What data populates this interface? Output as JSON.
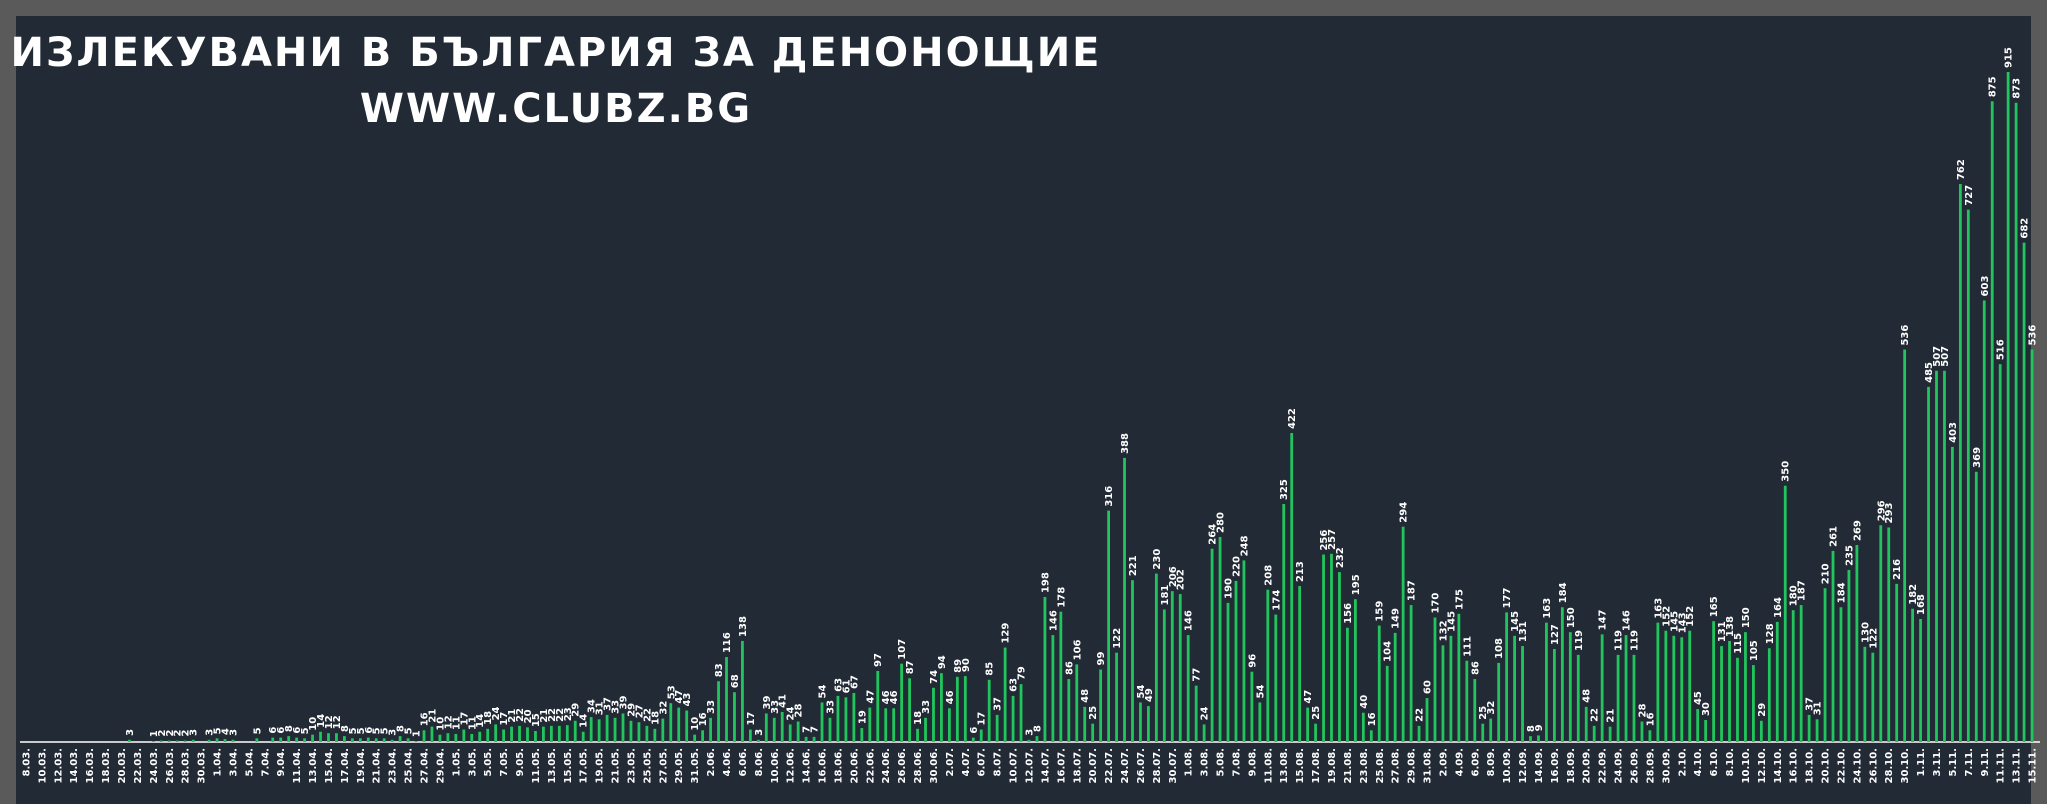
{
  "chart_data": {
    "type": "bar",
    "title": "ИЗЛЕКУВАНИ В БЪЛГАРИЯ ЗА ДЕНОНОЩИЕ",
    "subtitle": "WWW.CLUBZ.BG",
    "color": "#21c55d",
    "categories": [
      "8.03.",
      null,
      "10.03.",
      null,
      "12.03.",
      null,
      "14.03.",
      null,
      "16.03.",
      null,
      "18.03.",
      null,
      "20.03.",
      null,
      "22.03.",
      null,
      "24.03.",
      null,
      "26.03.",
      null,
      "28.03.",
      null,
      "30.03.",
      null,
      "1.04.",
      null,
      "3.04.",
      null,
      "5.04.",
      null,
      "7.04.",
      null,
      "9.04.",
      null,
      "11.04.",
      null,
      "13.04.",
      null,
      "15.04.",
      null,
      "17.04.",
      null,
      "19.04.",
      null,
      "21.04.",
      null,
      "23.04.",
      null,
      "25.04.",
      null,
      "27.04.",
      null,
      "29.04.",
      null,
      "1.05.",
      null,
      "3.05.",
      null,
      "5.05.",
      null,
      "7.05.",
      null,
      "9.05.",
      null,
      "11.05.",
      null,
      "13.05.",
      null,
      "15.05.",
      null,
      "17.05.",
      null,
      "19.05.",
      null,
      "21.05.",
      null,
      "23.05.",
      null,
      "25.05.",
      null,
      "27.05.",
      null,
      "29.05.",
      null,
      "31.05.",
      null,
      "2.06.",
      null,
      "4.06.",
      null,
      "6.06.",
      null,
      "8.06.",
      null,
      "10.06.",
      null,
      "12.06.",
      null,
      "14.06.",
      null,
      "16.06.",
      null,
      "18.06.",
      null,
      "20.06.",
      null,
      "22.06.",
      null,
      "24.06.",
      null,
      "26.06.",
      null,
      "28.06.",
      null,
      "30.06.",
      null,
      "2.07.",
      null,
      "4.07.",
      null,
      "6.07.",
      null,
      "8.07.",
      null,
      "10.07.",
      null,
      "12.07.",
      null,
      "14.07.",
      null,
      "16.07.",
      null,
      "18.07.",
      null,
      "20.07.",
      null,
      "22.07.",
      null,
      "24.07.",
      null,
      "26.07.",
      null,
      "28.07.",
      null,
      "30.07.",
      null,
      "1.08.",
      null,
      "3.08.",
      null,
      "5.08.",
      null,
      "7.08.",
      null,
      "9.08.",
      null,
      "11.08.",
      null,
      "13.08.",
      null,
      "15.08.",
      null,
      "17.08.",
      null,
      "19.08.",
      null,
      "21.08.",
      null,
      "23.08.",
      null,
      "25.08.",
      null,
      "27.08.",
      null,
      "29.08.",
      null,
      "31.08.",
      null,
      "2.09.",
      null,
      "4.09.",
      null,
      "6.09.",
      null,
      "8.09.",
      null,
      "10.09.",
      null,
      "12.09.",
      null,
      "14.09.",
      null,
      "16.09.",
      null,
      "18.09.",
      null,
      "20.09.",
      null,
      "22.09.",
      null,
      "24.09.",
      null,
      "26.09.",
      null,
      "28.09.",
      null,
      "30.09.",
      null,
      "2.10.",
      null,
      "4.10.",
      null,
      "6.10.",
      null,
      "8.10.",
      null,
      "10.10.",
      null,
      "12.10.",
      null,
      "14.10.",
      null,
      "16.10.",
      null,
      "18.10.",
      null,
      "20.10.",
      null,
      "22.10.",
      null,
      "24.10.",
      null,
      "26.10.",
      null,
      "28.10.",
      null,
      "30.10.",
      null,
      "1.11.",
      null,
      "3.11.",
      null,
      "5.11.",
      null,
      "7.11.",
      null,
      "9.11.",
      null,
      "11.11.",
      null,
      "13.11.",
      null,
      "15.11."
    ],
    "values": [
      0,
      0,
      0,
      0,
      0,
      0,
      0,
      0,
      0,
      0,
      0,
      0,
      0,
      3,
      0,
      0,
      1,
      2,
      2,
      2,
      2,
      3,
      0,
      3,
      5,
      4,
      3,
      0,
      0,
      5,
      0,
      6,
      6,
      8,
      6,
      5,
      10,
      14,
      12,
      12,
      8,
      5,
      5,
      6,
      5,
      5,
      3,
      8,
      5,
      1,
      16,
      21,
      10,
      12,
      11,
      17,
      11,
      14,
      18,
      24,
      17,
      21,
      22,
      20,
      15,
      21,
      22,
      22,
      23,
      29,
      14,
      34,
      31,
      37,
      33,
      39,
      29,
      27,
      22,
      18,
      32,
      53,
      47,
      43,
      10,
      16,
      33,
      83,
      116,
      68,
      138,
      17,
      3,
      39,
      33,
      41,
      24,
      28,
      7,
      7,
      54,
      33,
      63,
      61,
      67,
      19,
      47,
      97,
      46,
      46,
      107,
      87,
      18,
      33,
      74,
      94,
      46,
      89,
      90,
      6,
      17,
      85,
      37,
      129,
      63,
      79,
      3,
      8,
      198,
      146,
      178,
      86,
      106,
      48,
      25,
      99,
      316,
      122,
      388,
      221,
      54,
      49,
      230,
      181,
      206,
      202,
      146,
      77,
      24,
      264,
      280,
      190,
      220,
      248,
      96,
      54,
      208,
      174,
      325,
      422,
      213,
      47,
      25,
      256,
      257,
      232,
      156,
      195,
      40,
      16,
      159,
      104,
      149,
      294,
      187,
      22,
      60,
      170,
      132,
      145,
      175,
      111,
      86,
      25,
      32,
      108,
      177,
      145,
      131,
      8,
      9,
      163,
      127,
      184,
      150,
      119,
      48,
      22,
      147,
      21,
      119,
      146,
      119,
      28,
      16,
      163,
      152,
      145,
      143,
      152,
      45,
      30,
      165,
      131,
      138,
      115,
      150,
      105,
      29,
      128,
      164,
      350,
      180,
      187,
      37,
      31,
      210,
      261,
      184,
      235,
      269,
      130,
      122,
      296,
      293,
      216,
      536,
      182,
      168,
      485,
      507,
      507,
      403,
      762,
      727,
      369,
      603,
      875,
      516,
      915,
      873,
      682,
      536
    ]
  }
}
